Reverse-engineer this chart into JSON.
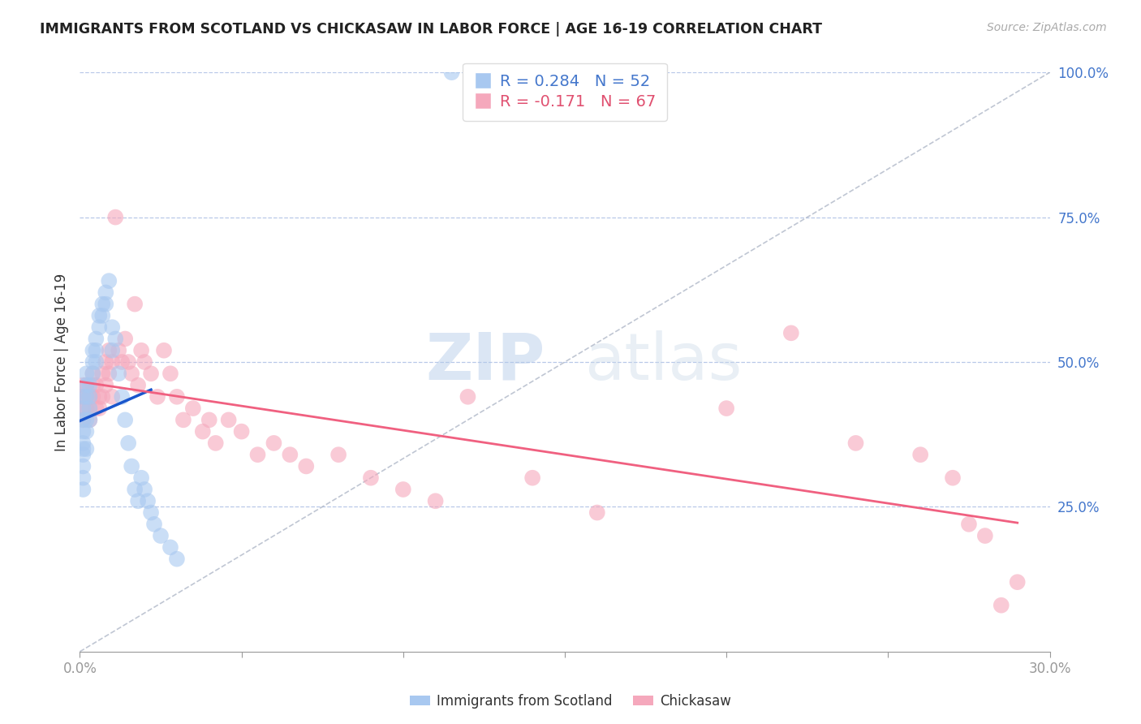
{
  "title": "IMMIGRANTS FROM SCOTLAND VS CHICKASAW IN LABOR FORCE | AGE 16-19 CORRELATION CHART",
  "source": "Source: ZipAtlas.com",
  "ylabel": "In Labor Force | Age 16-19",
  "xlim": [
    0.0,
    0.3
  ],
  "ylim": [
    0.0,
    1.0
  ],
  "xticks": [
    0.0,
    0.05,
    0.1,
    0.15,
    0.2,
    0.25,
    0.3
  ],
  "xtick_labels": [
    "0.0%",
    "",
    "",
    "",
    "",
    "",
    "30.0%"
  ],
  "ytick_labels_right": [
    "100.0%",
    "75.0%",
    "50.0%",
    "25.0%"
  ],
  "yticks_right": [
    1.0,
    0.75,
    0.5,
    0.25
  ],
  "scotland_R": 0.284,
  "scotland_N": 52,
  "chickasaw_R": -0.171,
  "chickasaw_N": 67,
  "scotland_color": "#a8c8f0",
  "chickasaw_color": "#f5a8bc",
  "scotland_line_color": "#1a56cc",
  "chickasaw_line_color": "#f06080",
  "watermark_color": "#c8d8f0",
  "scotland_x": [
    0.001,
    0.001,
    0.001,
    0.001,
    0.001,
    0.001,
    0.001,
    0.001,
    0.001,
    0.001,
    0.002,
    0.002,
    0.002,
    0.002,
    0.002,
    0.002,
    0.003,
    0.003,
    0.003,
    0.003,
    0.004,
    0.004,
    0.004,
    0.005,
    0.005,
    0.005,
    0.006,
    0.006,
    0.007,
    0.007,
    0.008,
    0.008,
    0.009,
    0.01,
    0.01,
    0.011,
    0.012,
    0.013,
    0.014,
    0.015,
    0.016,
    0.017,
    0.018,
    0.019,
    0.02,
    0.021,
    0.022,
    0.023,
    0.025,
    0.028,
    0.03,
    0.115
  ],
  "scotland_y": [
    0.38,
    0.36,
    0.34,
    0.32,
    0.3,
    0.28,
    0.42,
    0.4,
    0.44,
    0.35,
    0.4,
    0.38,
    0.35,
    0.48,
    0.46,
    0.44,
    0.42,
    0.4,
    0.46,
    0.44,
    0.52,
    0.5,
    0.48,
    0.54,
    0.52,
    0.5,
    0.58,
    0.56,
    0.6,
    0.58,
    0.62,
    0.6,
    0.64,
    0.56,
    0.52,
    0.54,
    0.48,
    0.44,
    0.4,
    0.36,
    0.32,
    0.28,
    0.26,
    0.3,
    0.28,
    0.26,
    0.24,
    0.22,
    0.2,
    0.18,
    0.16,
    1.0
  ],
  "chickasaw_x": [
    0.001,
    0.001,
    0.001,
    0.001,
    0.002,
    0.002,
    0.002,
    0.003,
    0.003,
    0.003,
    0.004,
    0.004,
    0.004,
    0.005,
    0.005,
    0.006,
    0.006,
    0.007,
    0.007,
    0.008,
    0.008,
    0.009,
    0.009,
    0.01,
    0.01,
    0.011,
    0.012,
    0.013,
    0.014,
    0.015,
    0.016,
    0.017,
    0.018,
    0.019,
    0.02,
    0.022,
    0.024,
    0.026,
    0.028,
    0.03,
    0.032,
    0.035,
    0.038,
    0.04,
    0.042,
    0.046,
    0.05,
    0.055,
    0.06,
    0.065,
    0.07,
    0.08,
    0.09,
    0.1,
    0.11,
    0.12,
    0.14,
    0.16,
    0.2,
    0.22,
    0.24,
    0.26,
    0.27,
    0.275,
    0.28,
    0.285,
    0.29
  ],
  "chickasaw_y": [
    0.44,
    0.42,
    0.4,
    0.46,
    0.44,
    0.42,
    0.46,
    0.44,
    0.42,
    0.4,
    0.46,
    0.48,
    0.44,
    0.42,
    0.46,
    0.44,
    0.42,
    0.48,
    0.44,
    0.5,
    0.46,
    0.52,
    0.48,
    0.44,
    0.5,
    0.75,
    0.52,
    0.5,
    0.54,
    0.5,
    0.48,
    0.6,
    0.46,
    0.52,
    0.5,
    0.48,
    0.44,
    0.52,
    0.48,
    0.44,
    0.4,
    0.42,
    0.38,
    0.4,
    0.36,
    0.4,
    0.38,
    0.34,
    0.36,
    0.34,
    0.32,
    0.34,
    0.3,
    0.28,
    0.26,
    0.44,
    0.3,
    0.24,
    0.42,
    0.55,
    0.36,
    0.34,
    0.3,
    0.22,
    0.2,
    0.08,
    0.12
  ]
}
